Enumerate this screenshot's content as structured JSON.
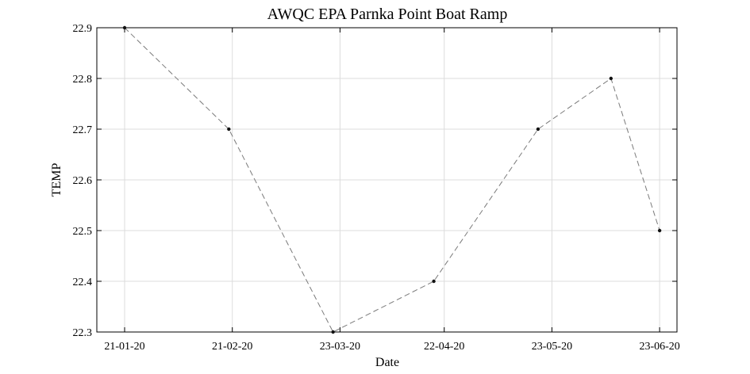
{
  "chart_data": {
    "type": "line",
    "title": "AWQC EPA Parnka Point Boat Ramp",
    "xlabel": "Date",
    "ylabel": "TEMP",
    "x_tick_labels": [
      "21-01-20",
      "21-02-20",
      "23-03-20",
      "22-04-20",
      "23-05-20",
      "23-06-20"
    ],
    "y_tick_labels": [
      "22.3",
      "22.4",
      "22.5",
      "22.6",
      "22.7",
      "22.8",
      "22.9"
    ],
    "ylim": [
      22.3,
      22.9
    ],
    "xlim": [
      "2020-01-21",
      "2020-06-23"
    ],
    "grid": true,
    "legend": "none",
    "colors": {
      "line": "#7a7a7a",
      "marker": "#111111",
      "grid": "#dcdcdc"
    },
    "series": [
      {
        "x": [
          "2020-01-21",
          "2020-02-20",
          "2020-03-21",
          "2020-04-19",
          "2020-05-19",
          "2020-06-09",
          "2020-06-23"
        ],
        "y": [
          22.9,
          22.7,
          22.3,
          22.4,
          22.7,
          22.8,
          22.5
        ]
      }
    ]
  }
}
